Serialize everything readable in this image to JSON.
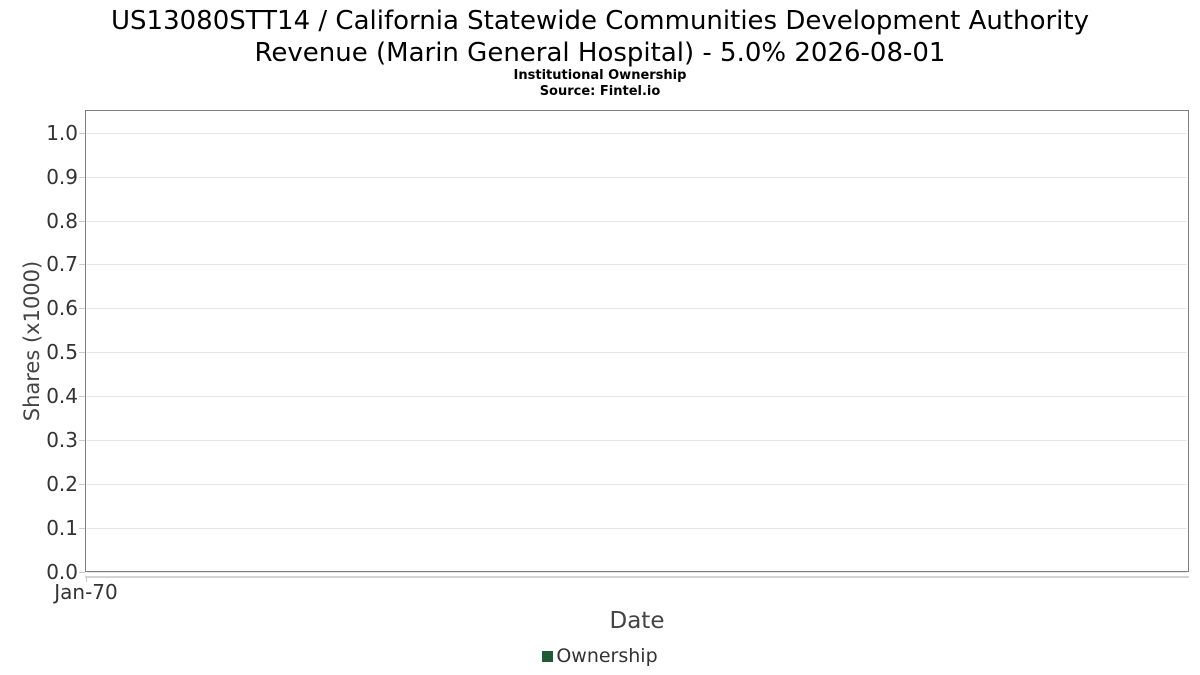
{
  "chart_data": {
    "type": "line",
    "title": "US13080STT14 / California Statewide Communities Development Authority Revenue (Marin General Hospital) - 5.0% 2026-08-01",
    "title_lines": [
      "US13080STT14 / California Statewide Communities Development Authority",
      "Revenue (Marin General Hospital) - 5.0% 2026-08-01"
    ],
    "subtitle": "Institutional Ownership",
    "source": "Source: Fintel.io",
    "xlabel": "Date",
    "ylabel": "Shares (x1000)",
    "x_tick_labels": [
      "Jan-70"
    ],
    "y_tick_labels": [
      "1.0",
      "0.9",
      "0.8",
      "0.7",
      "0.6",
      "0.5",
      "0.4",
      "0.3",
      "0.2",
      "0.1",
      "0.0"
    ],
    "ylim": [
      0.0,
      1.05
    ],
    "xlim_labels": [
      "Jan-70"
    ],
    "grid": "horizontal-only",
    "legend_position": "bottom-center",
    "series": [
      {
        "name": "Ownership",
        "color": "#1e5b35",
        "points": []
      }
    ],
    "style": {
      "gridline_color": "#e6e6e6",
      "plot_border_color": "#7f7f7f",
      "axis_line_color": "#d4d4d4",
      "tick_label_color": "#333333",
      "axis_title_color": "#444444",
      "title_color": "#000000",
      "background": "#ffffff"
    }
  }
}
